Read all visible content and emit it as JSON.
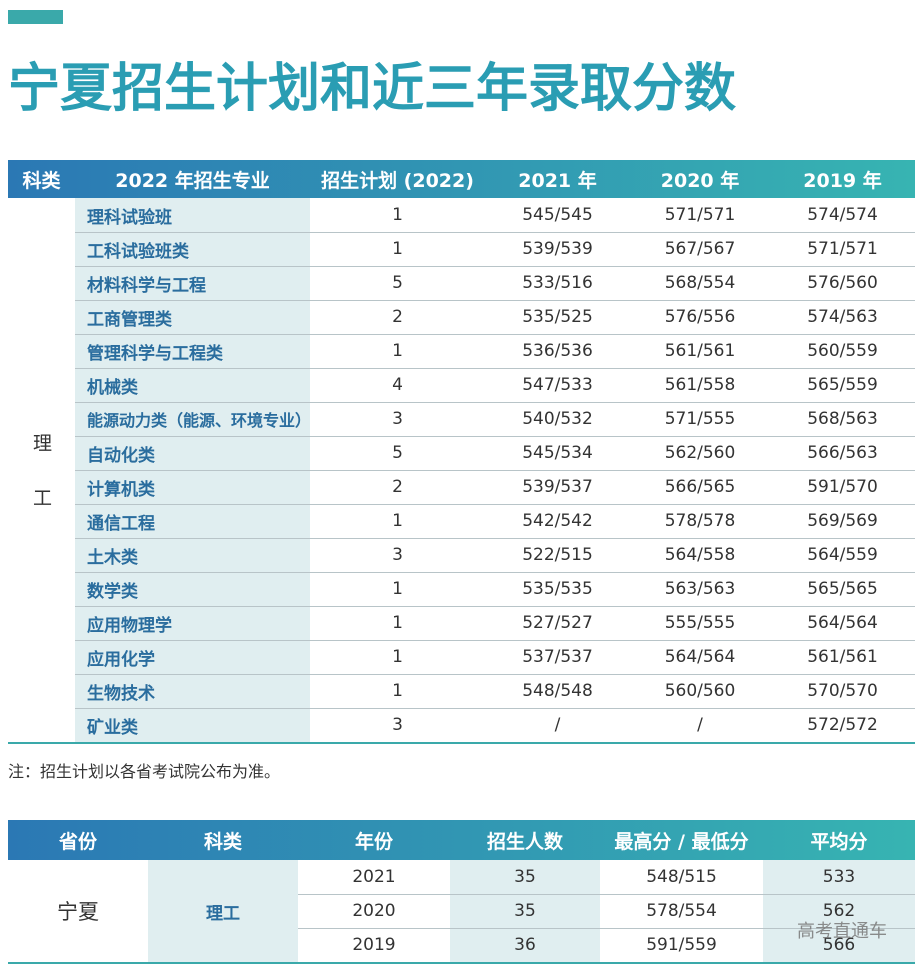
{
  "title": "宁夏招生计划和近三年录取分数",
  "table1": {
    "headers": [
      "科类",
      "2022 年招生专业",
      "招生计划 (2022)",
      "2021 年",
      "2020 年",
      "2019 年"
    ],
    "category": "理工",
    "rows": [
      [
        "理科试验班",
        1,
        "545/545",
        "571/571",
        "574/574"
      ],
      [
        "工科试验班类",
        1,
        "539/539",
        "567/567",
        "571/571"
      ],
      [
        "材料科学与工程",
        5,
        "533/516",
        "568/554",
        "576/560"
      ],
      [
        "工商管理类",
        2,
        "535/525",
        "576/556",
        "574/563"
      ],
      [
        "管理科学与工程类",
        1,
        "536/536",
        "561/561",
        "560/559"
      ],
      [
        "机械类",
        4,
        "547/533",
        "561/558",
        "565/559"
      ],
      [
        "能源动力类（能源、环境专业）",
        3,
        "540/532",
        "571/555",
        "568/563"
      ],
      [
        "自动化类",
        5,
        "545/534",
        "562/560",
        "566/563"
      ],
      [
        "计算机类",
        2,
        "539/537",
        "566/565",
        "591/570"
      ],
      [
        "通信工程",
        1,
        "542/542",
        "578/578",
        "569/569"
      ],
      [
        "土木类",
        3,
        "522/515",
        "564/558",
        "564/559"
      ],
      [
        "数学类",
        1,
        "535/535",
        "563/563",
        "565/565"
      ],
      [
        "应用物理学",
        1,
        "527/527",
        "555/555",
        "564/564"
      ],
      [
        "应用化学",
        1,
        "537/537",
        "564/564",
        "561/561"
      ],
      [
        "生物技术",
        1,
        "548/548",
        "560/560",
        "570/570"
      ],
      [
        "矿业类",
        3,
        "/",
        "/",
        "572/572"
      ]
    ]
  },
  "note": "注：招生计划以各省考试院公布为准。",
  "table2": {
    "headers": [
      "省份",
      "科类",
      "年份",
      "招生人数",
      "最高分 / 最低分",
      "平均分"
    ],
    "province": "宁夏",
    "category": "理工",
    "rows": [
      [
        2021,
        35,
        "548/515",
        533
      ],
      [
        2020,
        35,
        "578/554",
        562
      ],
      [
        2019,
        36,
        "591/559",
        566
      ]
    ]
  },
  "watermark": "高考直通车"
}
